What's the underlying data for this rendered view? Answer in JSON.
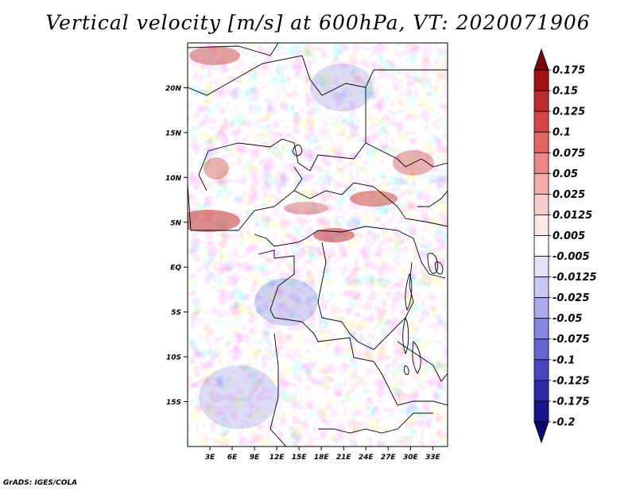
{
  "title": "Vertical velocity [m/s] at 600hPa, VT: 2020071906",
  "credit": "GrADS: IGES/COLA",
  "map": {
    "lat_range": [
      -20,
      25
    ],
    "lon_range": [
      0,
      35
    ],
    "lat_ticks": [
      "20N",
      "15N",
      "10N",
      "5N",
      "EQ",
      "5S",
      "10S",
      "15S"
    ],
    "lon_ticks": [
      "3E",
      "6E",
      "9E",
      "12E",
      "15E",
      "18E",
      "21E",
      "24E",
      "27E",
      "30E",
      "33E"
    ],
    "field": "vertical velocity shaded, red = positive, blue = negative"
  },
  "colorbar": {
    "orientation": "vertical",
    "labels": [
      "0.175",
      "0.15",
      "0.125",
      "0.1",
      "0.075",
      "0.05",
      "0.025",
      "0.0125",
      "0.005",
      "-0.005",
      "-0.0125",
      "-0.025",
      "-0.05",
      "-0.075",
      "-0.1",
      "-0.125",
      "-0.175",
      "-0.2"
    ],
    "colors": [
      "#7a0a0a",
      "#a11212",
      "#bf2a2a",
      "#d84545",
      "#e56565",
      "#ee8888",
      "#f5abab",
      "#f9cccc",
      "#fde6e6",
      "#ffffff",
      "#e3e3fa",
      "#c8c8f5",
      "#a9a9ee",
      "#8787e3",
      "#6565d5",
      "#4646c2",
      "#2a2aa8",
      "#16168a",
      "#090970"
    ]
  }
}
